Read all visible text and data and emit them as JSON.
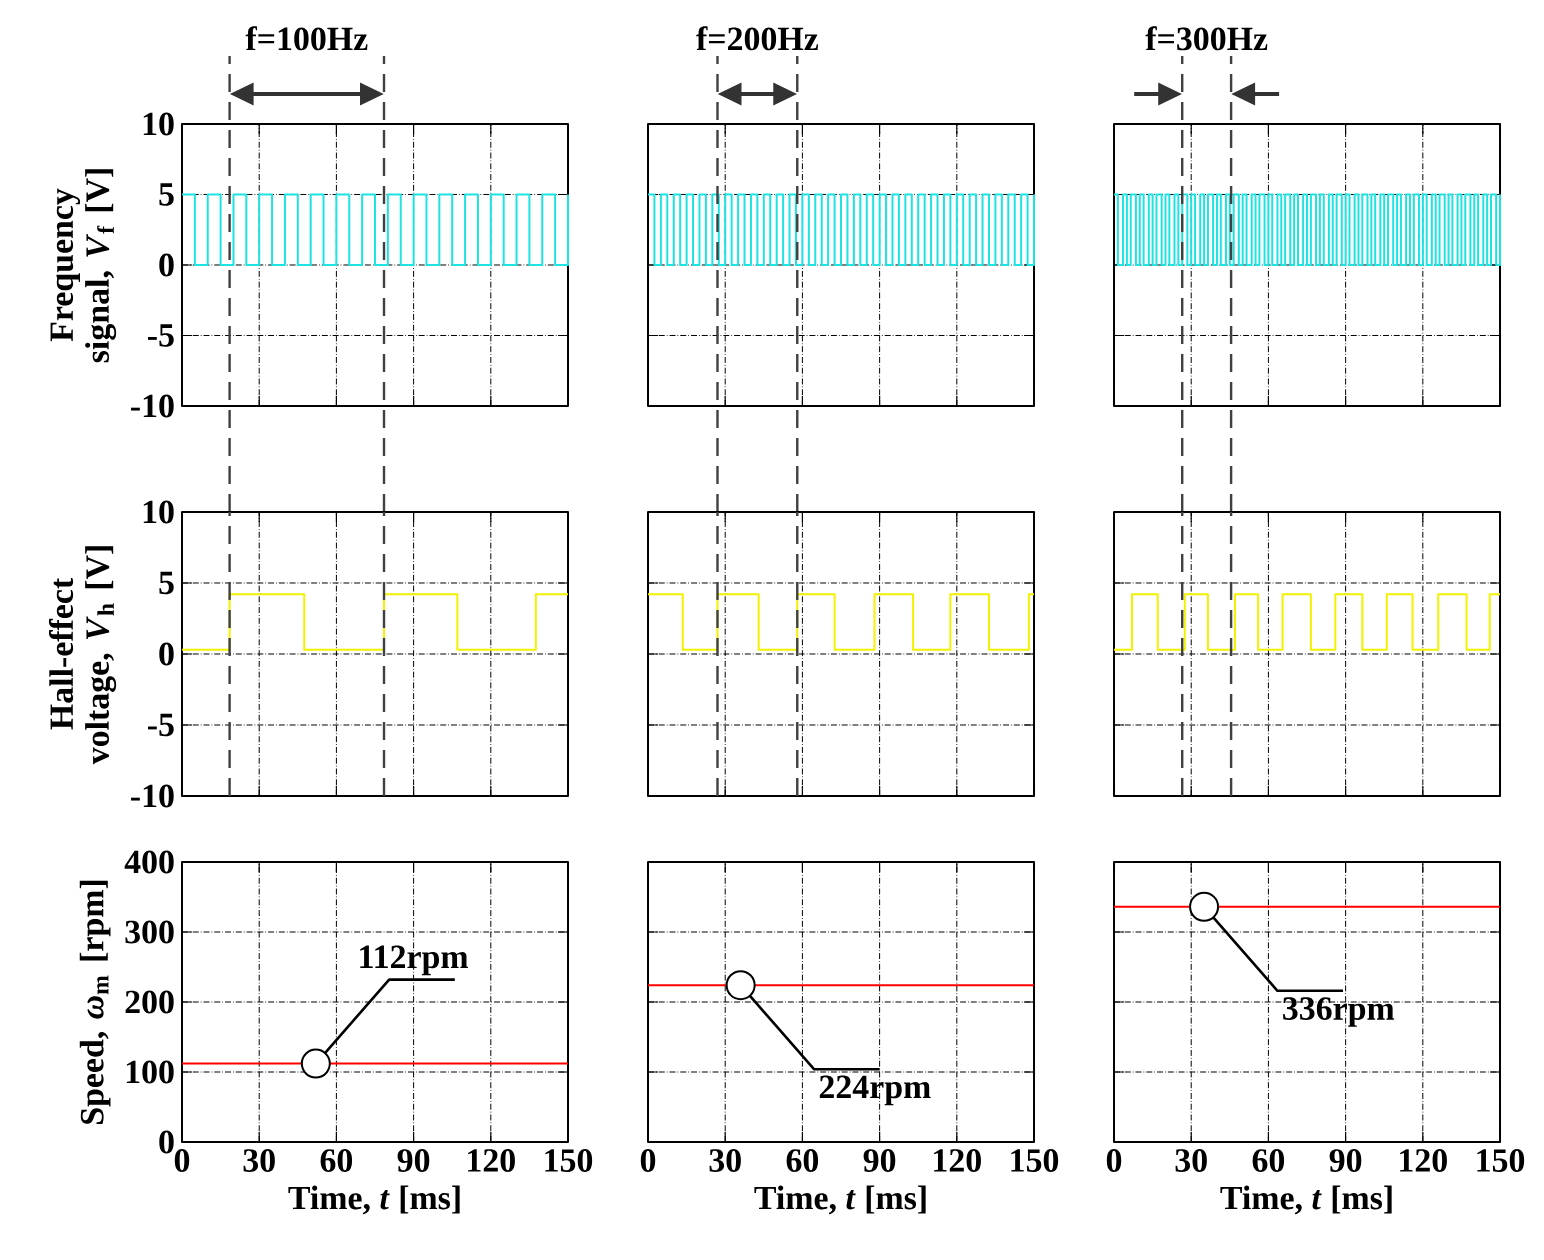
{
  "chart_data": [
    {
      "type": "step",
      "title": "f=100Hz",
      "ylabel": "Frequency signal, *V*$_{f}$ [V]",
      "xlim": [
        0,
        150
      ],
      "xticks": [
        0,
        30,
        60,
        90,
        120,
        150
      ],
      "ylim": [
        -10,
        10
      ],
      "yticks": [
        -10,
        -5,
        0,
        5,
        10
      ],
      "grid": true,
      "tick_labels": "y",
      "ref_lines": [
        {
          "axis": "x",
          "value": 18.5
        },
        {
          "axis": "x",
          "value": 78.5
        }
      ],
      "x": [
        0,
        5,
        10,
        15,
        20,
        25,
        30,
        35,
        40,
        45,
        50,
        55,
        60,
        65,
        70,
        75,
        80,
        85,
        90,
        95,
        100,
        105,
        110,
        115,
        120,
        125,
        130,
        135,
        140,
        145,
        150
      ],
      "series": [
        {
          "color": "#1ee3e3",
          "values": [
            5,
            0,
            5,
            0,
            5,
            0,
            5,
            0,
            5,
            0,
            5,
            0,
            5,
            0,
            5,
            0,
            5,
            0,
            5,
            0,
            5,
            0,
            5,
            0,
            5,
            0,
            5,
            0,
            5,
            0,
            5
          ]
        }
      ]
    },
    {
      "type": "step",
      "title": "f=200Hz",
      "xlim": [
        0,
        150
      ],
      "xticks": [
        0,
        30,
        60,
        90,
        120,
        150
      ],
      "ylim": [
        -10,
        10
      ],
      "yticks": [
        -10,
        -5,
        0,
        5,
        10
      ],
      "grid": true,
      "tick_labels": false,
      "ref_lines": [
        {
          "axis": "x",
          "value": 27
        },
        {
          "axis": "x",
          "value": 58
        }
      ],
      "x": [
        0,
        2.5,
        5,
        7.5,
        10,
        12.5,
        15,
        17.5,
        20,
        22.5,
        25,
        27.5,
        30,
        32.5,
        35,
        37.5,
        40,
        42.5,
        45,
        47.5,
        50,
        52.5,
        55,
        57.5,
        60,
        62.5,
        65,
        67.5,
        70,
        72.5,
        75,
        77.5,
        80,
        82.5,
        85,
        87.5,
        90,
        92.5,
        95,
        97.5,
        100,
        102.5,
        105,
        107.5,
        110,
        112.5,
        115,
        117.5,
        120,
        122.5,
        125,
        127.5,
        130,
        132.5,
        135,
        137.5,
        140,
        142.5,
        145,
        147.5,
        150
      ],
      "series": [
        {
          "color": "#1ee3e3",
          "values": [
            5,
            0,
            5,
            0,
            5,
            0,
            5,
            0,
            5,
            0,
            5,
            0,
            5,
            0,
            5,
            0,
            5,
            0,
            5,
            0,
            5,
            0,
            5,
            0,
            5,
            0,
            5,
            0,
            5,
            0,
            5,
            0,
            5,
            0,
            5,
            0,
            5,
            0,
            5,
            0,
            5,
            0,
            5,
            0,
            5,
            0,
            5,
            0,
            5,
            0,
            5,
            0,
            5,
            0,
            5,
            0,
            5,
            0,
            5,
            0,
            5
          ]
        }
      ]
    },
    {
      "type": "step",
      "title": "f=300Hz",
      "xlim": [
        0,
        150
      ],
      "xticks": [
        0,
        30,
        60,
        90,
        120,
        150
      ],
      "ylim": [
        -10,
        10
      ],
      "yticks": [
        -10,
        -5,
        0,
        5,
        10
      ],
      "grid": true,
      "tick_labels": false,
      "ref_lines": [
        {
          "axis": "x",
          "value": 26.5
        },
        {
          "axis": "x",
          "value": 45.5
        }
      ],
      "x": [
        0,
        1.5,
        3.5,
        5,
        6.5,
        8.5,
        10,
        11.5,
        13.5,
        15,
        16.5,
        18.5,
        20,
        21.5,
        23.5,
        25,
        26.5,
        28.5,
        30,
        31.5,
        33.5,
        35,
        36.5,
        38.5,
        40,
        41.5,
        43.5,
        45,
        46.5,
        48.5,
        50,
        51.5,
        53.5,
        55,
        56.5,
        58.5,
        60,
        61.5,
        63.5,
        65,
        66.5,
        68.5,
        70,
        71.5,
        73.5,
        75,
        76.5,
        78.5,
        80,
        81.5,
        83.5,
        85,
        86.5,
        88.5,
        90,
        91.5,
        93.5,
        95,
        96.5,
        98.5,
        100,
        101.5,
        103.5,
        105,
        106.5,
        108.5,
        110,
        111.5,
        113.5,
        115,
        116.5,
        118.5,
        120,
        121.5,
        123.5,
        125,
        126.5,
        128.5,
        130,
        131.5,
        133.5,
        135,
        136.5,
        138.5,
        140,
        141.5,
        143.5,
        145,
        146.5,
        148.5,
        150
      ],
      "series": [
        {
          "color": "#1ee3e3",
          "values": [
            5,
            0,
            5,
            0,
            5,
            0,
            5,
            0,
            5,
            0,
            5,
            0,
            5,
            0,
            5,
            0,
            5,
            0,
            5,
            0,
            5,
            0,
            5,
            0,
            5,
            0,
            5,
            0,
            5,
            0,
            5,
            0,
            5,
            0,
            5,
            0,
            5,
            0,
            5,
            0,
            5,
            0,
            5,
            0,
            5,
            0,
            5,
            0,
            5,
            0,
            5,
            0,
            5,
            0,
            5,
            0,
            5,
            0,
            5,
            0,
            5,
            0,
            5,
            0,
            5,
            0,
            5,
            0,
            5,
            0,
            5,
            0,
            5,
            0,
            5,
            0,
            5,
            0,
            5,
            0,
            5,
            0,
            5,
            0,
            5,
            0,
            5,
            0,
            5,
            0,
            5
          ]
        }
      ]
    },
    {
      "type": "step",
      "ylabel": "Hall-effect voltage, *V*$_{h}$ [V]",
      "xlim": [
        0,
        150
      ],
      "xticks": [
        0,
        30,
        60,
        90,
        120,
        150
      ],
      "ylim": [
        -10,
        10
      ],
      "yticks": [
        -10,
        -5,
        0,
        5,
        10
      ],
      "grid": true,
      "tick_labels": "y",
      "ref_lines": [
        {
          "axis": "x",
          "value": 18.5
        },
        {
          "axis": "x",
          "value": 78.5
        }
      ],
      "x": [
        0,
        18.5,
        47.5,
        78.5,
        107,
        137.5,
        150
      ],
      "series": [
        {
          "color": "#f2f200",
          "values": [
            0.3,
            4.2,
            0.3,
            4.2,
            0.3,
            4.2,
            4.2
          ]
        }
      ]
    },
    {
      "type": "step",
      "xlim": [
        0,
        150
      ],
      "xticks": [
        0,
        30,
        60,
        90,
        120,
        150
      ],
      "ylim": [
        -10,
        10
      ],
      "yticks": [
        -10,
        -5,
        0,
        5,
        10
      ],
      "grid": true,
      "tick_labels": false,
      "ref_lines": [
        {
          "axis": "x",
          "value": 27
        },
        {
          "axis": "x",
          "value": 58
        }
      ],
      "x": [
        0,
        13.5,
        27,
        43,
        58,
        72.5,
        88,
        103,
        117.5,
        132.5,
        148,
        150
      ],
      "series": [
        {
          "color": "#f2f200",
          "values": [
            4.2,
            0.3,
            4.2,
            0.3,
            4.2,
            0.3,
            4.2,
            0.3,
            4.2,
            0.3,
            4.2,
            4.2
          ]
        }
      ]
    },
    {
      "type": "step",
      "xlim": [
        0,
        150
      ],
      "xticks": [
        0,
        30,
        60,
        90,
        120,
        150
      ],
      "ylim": [
        -10,
        10
      ],
      "yticks": [
        -10,
        -5,
        0,
        5,
        10
      ],
      "grid": true,
      "tick_labels": false,
      "ref_lines": [
        {
          "axis": "x",
          "value": 26.5
        },
        {
          "axis": "x",
          "value": 45.5
        }
      ],
      "x": [
        0,
        7,
        17,
        27.5,
        36.5,
        47,
        56,
        65.5,
        76.5,
        86,
        96.5,
        106,
        116,
        126,
        137,
        146,
        150
      ],
      "series": [
        {
          "color": "#f2f200",
          "values": [
            0.3,
            4.2,
            0.3,
            4.2,
            0.3,
            4.2,
            0.3,
            4.2,
            0.3,
            4.2,
            0.3,
            4.2,
            0.3,
            4.2,
            0.3,
            4.2,
            4.2
          ]
        }
      ]
    },
    {
      "type": "line",
      "ylabel": "Speed, *ω*$_{m}$ [rpm]",
      "xlabel": "Time, *t* [ms]",
      "xlim": [
        0,
        150
      ],
      "xticks": [
        0,
        30,
        60,
        90,
        120,
        150
      ],
      "ylim": [
        0,
        400
      ],
      "yticks": [
        0,
        100,
        200,
        300,
        400
      ],
      "grid": true,
      "annotations": [
        {
          "text": "112rpm",
          "x": 52,
          "y": 112
        }
      ],
      "x": [
        0,
        150
      ],
      "series": [
        {
          "color": "#ff0000",
          "values": [
            112,
            112
          ]
        }
      ]
    },
    {
      "type": "line",
      "xlabel": "Time, *t* [ms]",
      "xlim": [
        0,
        150
      ],
      "xticks": [
        0,
        30,
        60,
        90,
        120,
        150
      ],
      "ylim": [
        0,
        400
      ],
      "yticks": [
        0,
        100,
        200,
        300,
        400
      ],
      "grid": true,
      "tick_labels": "x",
      "annotations": [
        {
          "text": "224rpm",
          "x": 36,
          "y": 224
        }
      ],
      "x": [
        0,
        150
      ],
      "series": [
        {
          "color": "#ff0000",
          "values": [
            224,
            224
          ]
        }
      ]
    },
    {
      "type": "line",
      "xlabel": "Time, *t* [ms]",
      "xlim": [
        0,
        150
      ],
      "xticks": [
        0,
        30,
        60,
        90,
        120,
        150
      ],
      "ylim": [
        0,
        400
      ],
      "yticks": [
        0,
        100,
        200,
        300,
        400
      ],
      "grid": true,
      "tick_labels": "x",
      "annotations": [
        {
          "text": "336rpm",
          "x": 35,
          "y": 336
        }
      ],
      "x": [
        0,
        150
      ],
      "series": [
        {
          "color": "#ff0000",
          "values": [
            336,
            336
          ]
        }
      ]
    }
  ]
}
